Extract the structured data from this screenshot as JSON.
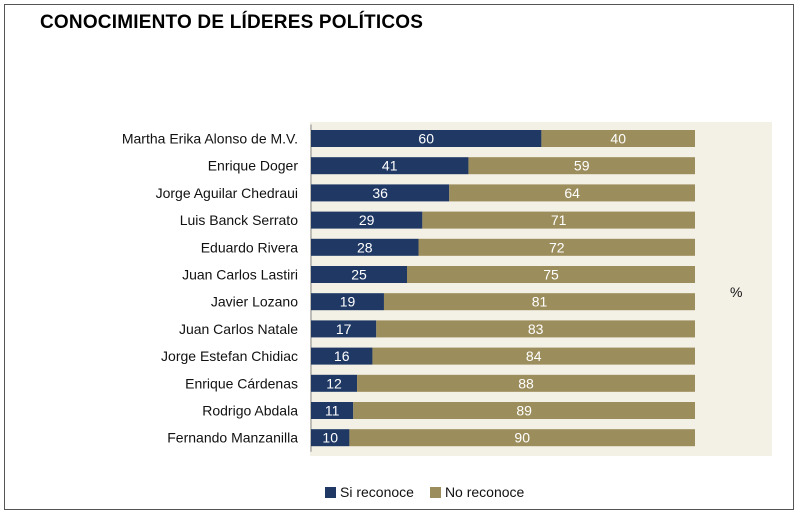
{
  "chart_data": {
    "type": "bar",
    "orientation": "horizontal",
    "stacked": true,
    "title": "CONOCIMIENTO DE LÍDERES POLÍTICOS",
    "unit_label": "%",
    "categories": [
      "Martha Erika Alonso de M.V.",
      "Enrique Doger",
      "Jorge Aguilar Chedraui",
      "Luis Banck Serrato",
      "Eduardo Rivera",
      "Juan Carlos Lastiri",
      "Javier Lozano",
      "Juan Carlos Natale",
      "Jorge Estefan Chidiac",
      "Enrique Cárdenas",
      "Rodrigo Abdala",
      "Fernando Manzanilla"
    ],
    "series": [
      {
        "name": "Si reconoce",
        "color": "#1f3864",
        "values": [
          60,
          41,
          36,
          29,
          28,
          25,
          19,
          17,
          16,
          12,
          11,
          10
        ]
      },
      {
        "name": "No reconoce",
        "color": "#9c8d5c",
        "values": [
          40,
          59,
          64,
          71,
          72,
          75,
          81,
          83,
          84,
          88,
          89,
          90
        ]
      }
    ],
    "xlim": [
      0,
      100
    ],
    "legend_position": "bottom",
    "grid": false
  }
}
